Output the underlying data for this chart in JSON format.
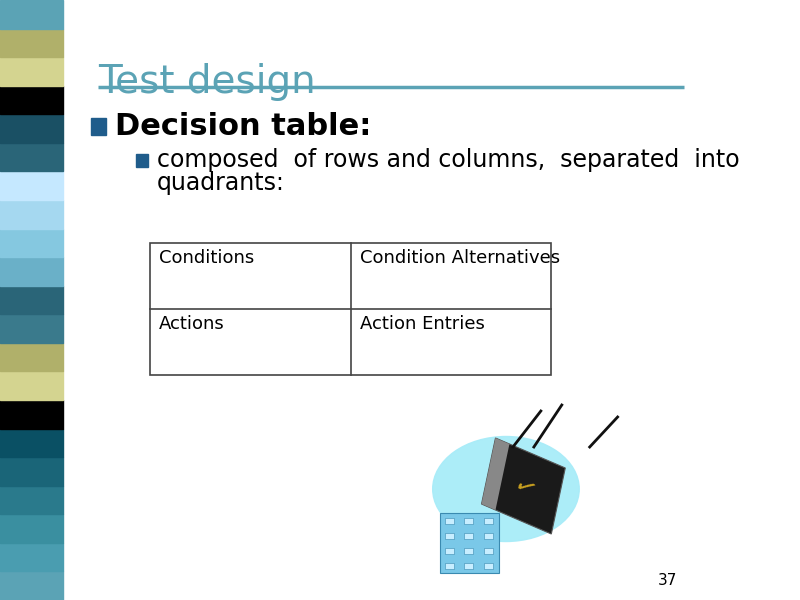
{
  "title": "Test design",
  "title_color": "#5ba3b5",
  "title_fontsize": 28,
  "slide_number": "37",
  "bullet1": "Decision table:",
  "bullet1_fontsize": 22,
  "bullet2_line1": "composed  of rows and columns,  separated  into",
  "bullet2_line2": "quadrants:",
  "bullet2_fontsize": 17,
  "bullet_color": "#1f5c8b",
  "text_color": "#000000",
  "background_color": "#ffffff",
  "header_line_color": "#5ba3b5",
  "table_cells": [
    [
      "Conditions",
      "Condition Alternatives"
    ],
    [
      "Actions",
      "Action Entries"
    ]
  ],
  "table_font_size": 13,
  "sidebar_colors": [
    "#5ba3b5",
    "#4a9db0",
    "#3a8fa0",
    "#2a7a8c",
    "#1a6578",
    "#0a5064",
    "#000000",
    "#d4d490",
    "#b0b06a",
    "#3a7a8c",
    "#2a6578",
    "#6ab0c8",
    "#85c8e0",
    "#a5d8f0",
    "#c5e8ff",
    "#2a6578",
    "#1a5064",
    "#000000",
    "#d4d490",
    "#b0b06a",
    "#5ba3b5"
  ]
}
